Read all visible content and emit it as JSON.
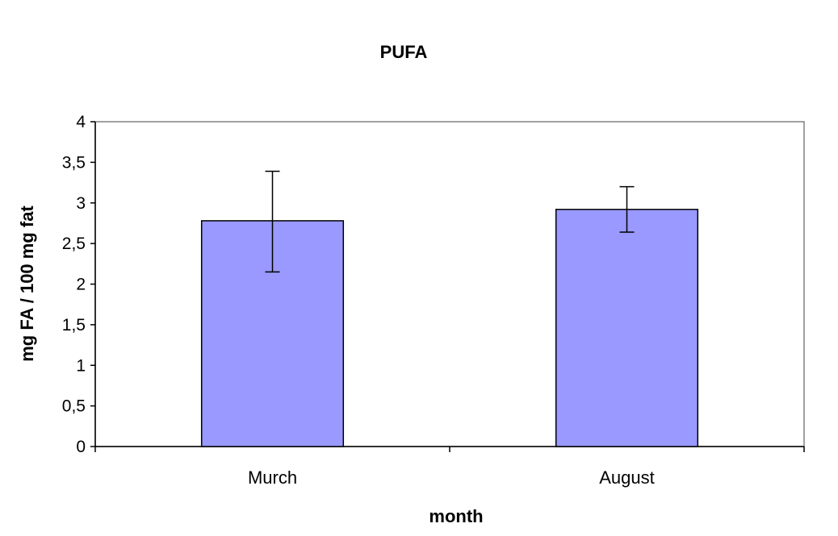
{
  "chart_data": {
    "type": "bar",
    "title": "PUFA",
    "xlabel": "month",
    "ylabel": "mg FA / 100 mg fat",
    "categories": [
      "Murch",
      "August"
    ],
    "values": [
      2.78,
      2.92
    ],
    "error_low": [
      2.15,
      2.64
    ],
    "error_high": [
      3.39,
      3.2
    ],
    "ylim": [
      0,
      4
    ],
    "yticks": [
      0,
      0.5,
      1,
      1.5,
      2,
      2.5,
      3,
      3.5,
      4
    ],
    "ytick_labels": [
      "0",
      "0,5",
      "1",
      "1,5",
      "2",
      "2,5",
      "3",
      "3,5",
      "4"
    ],
    "grid": false,
    "legend": "none",
    "colors": {
      "bar_fill": "#9999ff",
      "bar_stroke": "#000000",
      "plot_border": "#808080"
    }
  }
}
